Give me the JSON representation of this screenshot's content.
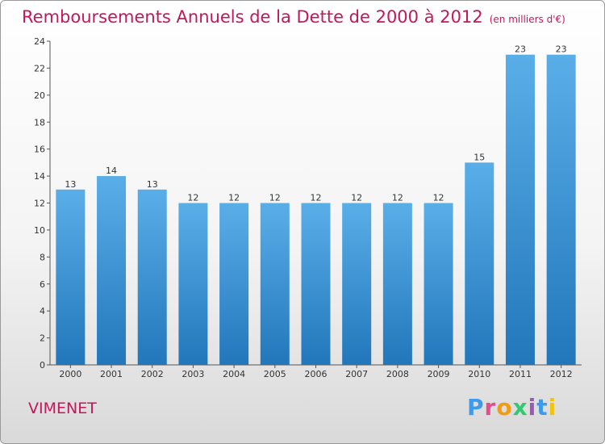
{
  "header": {
    "title": "Remboursements Annuels de la Dette de 2000 à 2012",
    "subtitle": "(en milliers d'€)"
  },
  "footer": {
    "commune": "VIMENET",
    "logo_letters": [
      "P",
      "r",
      "o",
      "x",
      "i",
      "t",
      "i"
    ],
    "logo_colors": [
      "#3d9be9",
      "#e84a8f",
      "#f39c12",
      "#2ecc71",
      "#9b59b6",
      "#3d9be9",
      "#f1c40f"
    ]
  },
  "chart_data": {
    "type": "bar",
    "categories": [
      "2000",
      "2001",
      "2002",
      "2003",
      "2004",
      "2005",
      "2006",
      "2007",
      "2008",
      "2009",
      "2010",
      "2011",
      "2012"
    ],
    "values": [
      13,
      14,
      13,
      12,
      12,
      12,
      12,
      12,
      12,
      12,
      15,
      23,
      23
    ],
    "title": "Remboursements Annuels de la Dette de 2000 à 2012",
    "ylim": [
      0,
      24
    ],
    "yticks": [
      0,
      2,
      4,
      6,
      8,
      10,
      12,
      14,
      16,
      18,
      20,
      22,
      24
    ],
    "grid": false,
    "bar_color_top": "#5aaee8",
    "bar_color_bottom": "#2277bb"
  }
}
